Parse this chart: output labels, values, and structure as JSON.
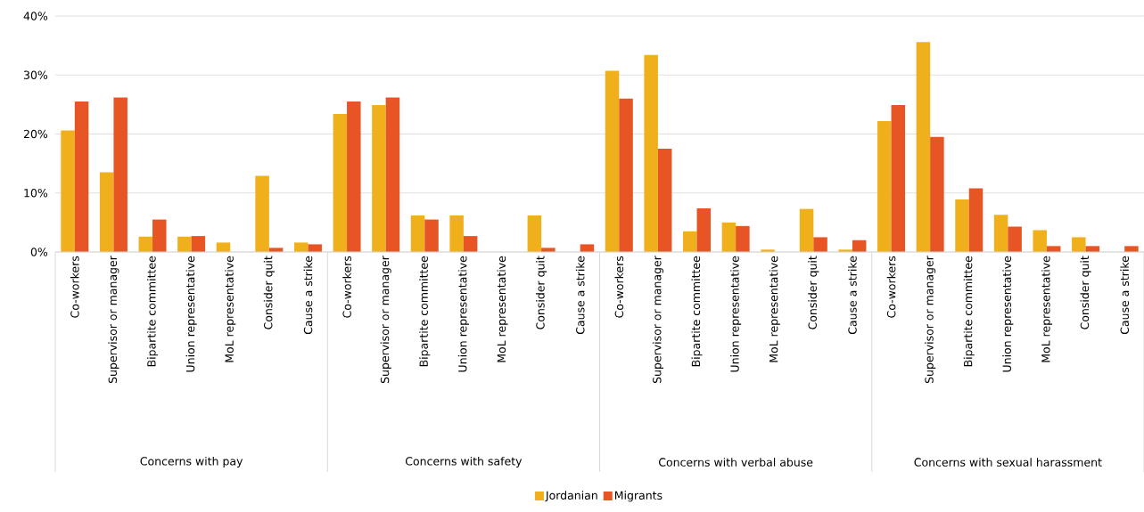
{
  "chart_data": {
    "type": "bar",
    "categories": [
      "Co-workers",
      "Supervisor or manager",
      "Bipartite committee",
      "Union representative",
      "MoL representative",
      "Consider quit",
      "Cause a strike",
      "Co-workers",
      "Supervisor or manager",
      "Bipartite committee",
      "Union representative",
      "MoL representative",
      "Consider quit",
      "Cause a strike",
      "Co-workers",
      "Supervisor or manager",
      "Bipartite committee",
      "Union representative",
      "MoL representative",
      "Consider quit",
      "Cause a strike",
      "Co-workers",
      "Supervisor or manager",
      "Bipartite committee",
      "Union representative",
      "MoL representative",
      "Consider quit",
      "Cause a strike"
    ],
    "series": [
      {
        "name": "Jordanian",
        "color": "#f0b01b",
        "values": [
          20.6,
          13.5,
          2.6,
          2.6,
          1.6,
          12.9,
          1.6,
          23.4,
          24.9,
          6.2,
          6.2,
          null,
          6.2,
          null,
          30.7,
          33.4,
          3.5,
          5.0,
          0.4,
          7.3,
          0.4,
          22.2,
          35.6,
          8.9,
          6.3,
          3.7,
          2.5,
          null
        ]
      },
      {
        "name": "Migrants",
        "color": "#e75524",
        "values": [
          25.5,
          26.2,
          5.5,
          2.7,
          null,
          0.7,
          1.3,
          25.5,
          26.2,
          5.5,
          2.7,
          null,
          0.7,
          1.3,
          26.0,
          17.5,
          7.4,
          4.4,
          null,
          2.5,
          2.0,
          24.9,
          19.5,
          10.8,
          4.3,
          1.0,
          1.0,
          1.0
        ]
      }
    ],
    "annotations": [
      "Concerns with pay",
      "Concerns with safety",
      "Concerns with verbal abuse",
      "Concerns with sexual harassment"
    ],
    "ylim": [
      0,
      40
    ],
    "yticks": [
      {
        "value": 0,
        "label": "0%"
      },
      {
        "value": 10,
        "label": "10%"
      },
      {
        "value": 20,
        "label": "20%"
      },
      {
        "value": 30,
        "label": "30%"
      },
      {
        "value": 40,
        "label": "40%"
      }
    ],
    "grid": "y",
    "legend": "bottom"
  }
}
